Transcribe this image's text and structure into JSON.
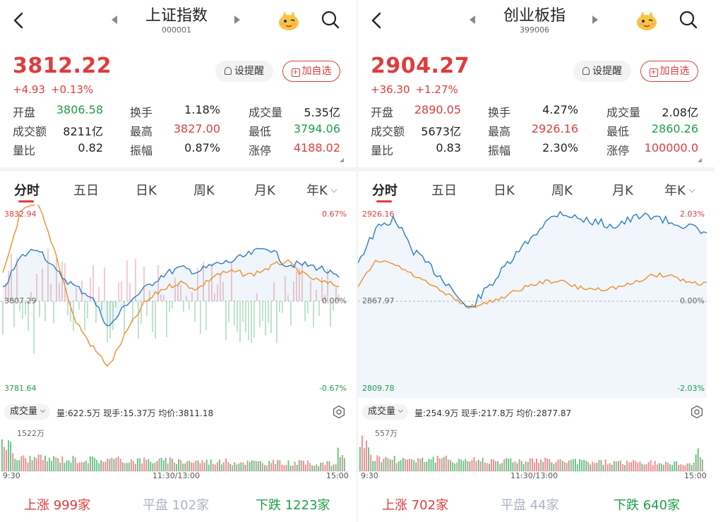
{
  "panels": [
    {
      "title": "上证指数",
      "code": "000001",
      "price": "3812.22",
      "change": "+4.93",
      "change_pct": "+0.13%",
      "buttons": {
        "alert": "设提醒",
        "add": "加自选"
      },
      "stats": [
        [
          {
            "label": "开盘",
            "value": "3806.58",
            "color": "green"
          },
          {
            "label": "换手",
            "value": "1.18%",
            "color": "dark"
          },
          {
            "label": "成交量",
            "value": "5.35亿",
            "color": "dark"
          }
        ],
        [
          {
            "label": "成交额",
            "value": "8211亿",
            "color": "dark"
          },
          {
            "label": "最高",
            "value": "3827.00",
            "color": "red"
          },
          {
            "label": "最低",
            "value": "3794.06",
            "color": "green"
          }
        ],
        [
          {
            "label": "量比",
            "value": "0.82",
            "color": "dark"
          },
          {
            "label": "振幅",
            "value": "0.87%",
            "color": "dark"
          },
          {
            "label": "涨停",
            "value": "4188.02",
            "color": "red"
          }
        ]
      ],
      "tabs": [
        "分时",
        "五日",
        "日K",
        "周K",
        "月K",
        "年K"
      ],
      "chart": {
        "y_high": "3832.94",
        "y_mid": "3807.29",
        "y_low": "3781.64",
        "pct_high": "0.67%",
        "pct_mid": "0.00%",
        "pct_low": "-0.67%"
      },
      "volume": {
        "selector": "成交量",
        "info": "量:622.5万  现手:15.37万  均价:3811.18",
        "max_label": "1522万"
      },
      "times": [
        "9:30",
        "11:30/13:00",
        "15:00"
      ],
      "breadth": {
        "up_label": "上涨",
        "up": "999家",
        "flat_label": "平盘",
        "flat": "102家",
        "down_label": "下跌",
        "down": "1223家"
      }
    },
    {
      "title": "创业板指",
      "code": "399006",
      "price": "2904.27",
      "change": "+36.30",
      "change_pct": "+1.27%",
      "buttons": {
        "alert": "设提醒",
        "add": "加自选"
      },
      "stats": [
        [
          {
            "label": "开盘",
            "value": "2890.05",
            "color": "red"
          },
          {
            "label": "换手",
            "value": "4.27%",
            "color": "dark"
          },
          {
            "label": "成交量",
            "value": "2.08亿",
            "color": "dark"
          }
        ],
        [
          {
            "label": "成交额",
            "value": "5673亿",
            "color": "dark"
          },
          {
            "label": "最高",
            "value": "2926.16",
            "color": "red"
          },
          {
            "label": "最低",
            "value": "2860.26",
            "color": "green"
          }
        ],
        [
          {
            "label": "量比",
            "value": "0.83",
            "color": "dark"
          },
          {
            "label": "振幅",
            "value": "2.30%",
            "color": "dark"
          },
          {
            "label": "涨停",
            "value": "100000.0",
            "color": "red"
          }
        ]
      ],
      "tabs": [
        "分时",
        "五日",
        "日K",
        "周K",
        "月K",
        "年K"
      ],
      "chart": {
        "y_high": "2926.16",
        "y_mid": "2867.97",
        "y_low": "2809.78",
        "pct_high": "2.03%",
        "pct_mid": "0.00%",
        "pct_low": "-2.03%"
      },
      "volume": {
        "selector": "成交量",
        "info": "量:254.9万  现手:217.8万  均价:2877.87",
        "max_label": "557万"
      },
      "times": [
        "9:30",
        "11:30/13:00",
        "15:00"
      ],
      "breadth": {
        "up_label": "上涨",
        "up": "702家",
        "flat_label": "平盘",
        "flat": "44家",
        "down_label": "下跌",
        "down": "640家"
      }
    }
  ],
  "colors": {
    "up": "#e03c3c",
    "down": "#1e9e48",
    "price_line": "#2f7cc4",
    "avg_line": "#ef8f2c"
  }
}
